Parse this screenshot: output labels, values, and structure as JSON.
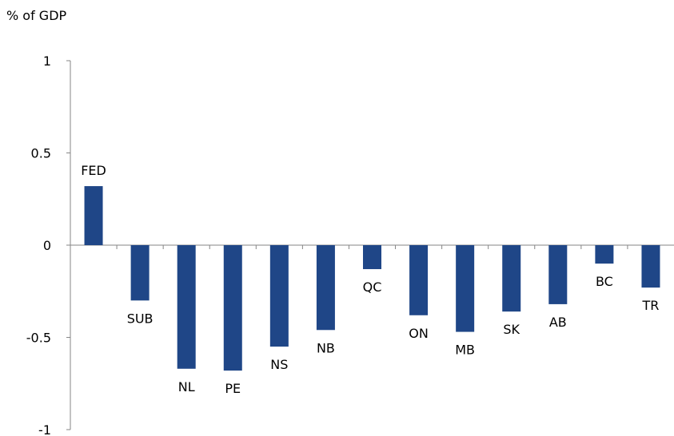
{
  "chart_data": {
    "type": "bar",
    "unit_label": "% of GDP",
    "title": "",
    "xlabel": "",
    "ylabel": "",
    "ylim": [
      -1,
      1
    ],
    "yticks": [
      {
        "value": 1,
        "label": "1"
      },
      {
        "value": 0.5,
        "label": "0.5"
      },
      {
        "value": 0,
        "label": "0"
      },
      {
        "value": -0.5,
        "label": "-0.5"
      },
      {
        "value": -1,
        "label": "-1"
      }
    ],
    "categories": [
      "FED",
      "SUB",
      "NL",
      "PE",
      "NS",
      "NB",
      "QC",
      "ON",
      "MB",
      "SK",
      "AB",
      "BC",
      "TR"
    ],
    "values": [
      0.32,
      -0.3,
      -0.67,
      -0.68,
      -0.55,
      -0.46,
      -0.13,
      -0.38,
      -0.47,
      -0.36,
      -0.32,
      -0.1,
      -0.23
    ],
    "bar_color": "#1F4687",
    "axis_color": "#868686",
    "grid": false,
    "legend": "none"
  }
}
